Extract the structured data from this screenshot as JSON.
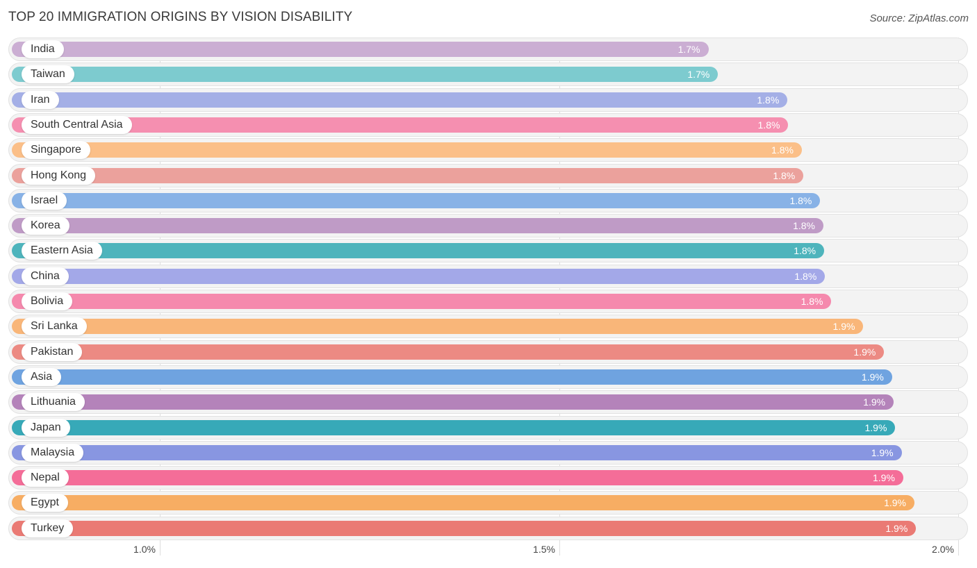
{
  "title": "TOP 20 IMMIGRATION ORIGINS BY VISION DISABILITY",
  "source": "Source: ZipAtlas.com",
  "chart_data": {
    "type": "bar",
    "orientation": "horizontal",
    "title": "TOP 20 IMMIGRATION ORIGINS BY VISION DISABILITY",
    "xlim": [
      0.8146,
      2.012
    ],
    "ticks": [
      {
        "value": 1.0,
        "label": "1.0%"
      },
      {
        "value": 1.5,
        "label": "1.5%"
      },
      {
        "value": 2.0,
        "label": "2.0%"
      }
    ],
    "grid": true,
    "categories": [
      "India",
      "Taiwan",
      "Iran",
      "South Central Asia",
      "Singapore",
      "Hong Kong",
      "Israel",
      "Korea",
      "Eastern Asia",
      "China",
      "Bolivia",
      "Sri Lanka",
      "Pakistan",
      "Asia",
      "Lithuania",
      "Japan",
      "Malaysia",
      "Nepal",
      "Egypt",
      "Turkey"
    ],
    "values": [
      1.687,
      1.699,
      1.786,
      1.787,
      1.804,
      1.806,
      1.827,
      1.831,
      1.832,
      1.833,
      1.841,
      1.881,
      1.907,
      1.917,
      1.919,
      1.921,
      1.929,
      1.931,
      1.945,
      1.947
    ],
    "value_labels": [
      "1.7%",
      "1.7%",
      "1.8%",
      "1.8%",
      "1.8%",
      "1.8%",
      "1.8%",
      "1.8%",
      "1.8%",
      "1.8%",
      "1.8%",
      "1.9%",
      "1.9%",
      "1.9%",
      "1.9%",
      "1.9%",
      "1.9%",
      "1.9%",
      "1.9%",
      "1.9%"
    ],
    "colors": [
      "#cbaed3",
      "#7dcbcf",
      "#a4afe6",
      "#f58fb0",
      "#fbbf88",
      "#eba19c",
      "#88b2e6",
      "#bf9bc6",
      "#4eb4bc",
      "#a3a8e8",
      "#f589ad",
      "#f9b679",
      "#ec8a83",
      "#6fa3e0",
      "#b483ba",
      "#37a9b8",
      "#8896e1",
      "#f46d98",
      "#f7ad63",
      "#ea7a74"
    ]
  }
}
